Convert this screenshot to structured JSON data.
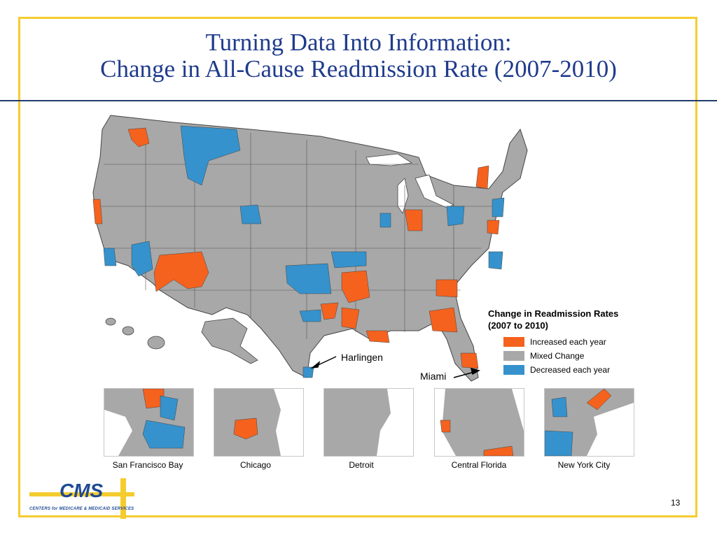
{
  "slide": {
    "title_line1": "Turning Data Into Information:",
    "title_line2": "Change in All-Cause Readmission Rate (2007-2010)",
    "page_number": "13"
  },
  "legend": {
    "title_line1": "Change in Readmission Rates",
    "title_line2": "(2007 to 2010)",
    "items": [
      {
        "label": "Increased each year",
        "color": "#f5621e"
      },
      {
        "label": "Mixed Change",
        "color": "#a8a8a8"
      },
      {
        "label": "Decreased each year",
        "color": "#3592cc"
      }
    ]
  },
  "callouts": {
    "harlingen": "Harlingen",
    "miami": "Miami"
  },
  "insets": [
    {
      "label": "San Francisco Bay"
    },
    {
      "label": "Chicago"
    },
    {
      "label": "Detroit"
    },
    {
      "label": "Central Florida"
    },
    {
      "label": "New York City"
    }
  ],
  "logo": {
    "text": "CMS",
    "subtitle": "CENTERS for MEDICARE & MEDICAID SERVICES"
  },
  "colors": {
    "increased": "#f5621e",
    "mixed": "#a8a8a8",
    "decreased": "#3592cc",
    "frame": "#f5cc2e",
    "title": "#1f3b8c"
  }
}
